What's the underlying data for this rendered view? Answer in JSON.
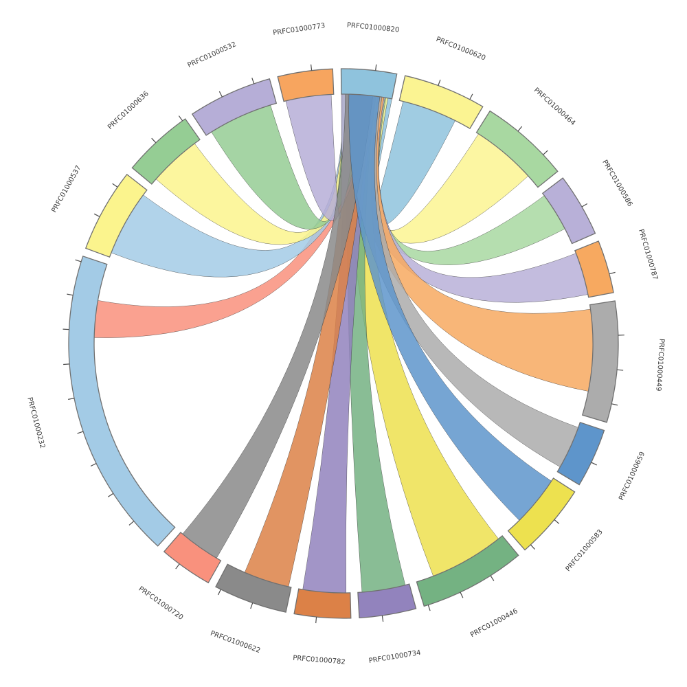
{
  "chart_data": {
    "type": "chord",
    "hub": "PRFC01000820",
    "start_angle_deg": -0.5,
    "tick_interval_deg": 7.2,
    "sectors": [
      {
        "label": "PRFC01000820",
        "size": 11.7,
        "color": "#8FC3DD"
      },
      {
        "label": "PRFC01000620",
        "size": 17.5,
        "color": "#FBF492"
      },
      {
        "label": "PRFC01000464",
        "size": 19.0,
        "color": "#A8D8A1"
      },
      {
        "label": "PRFC01000586",
        "size": 13.4,
        "color": "#B8B0D8"
      },
      {
        "label": "PRFC01000787",
        "size": 11.2,
        "color": "#F7A960"
      },
      {
        "label": "PRFC01000449",
        "size": 25.6,
        "color": "#ACACAC"
      },
      {
        "label": "PRFC01000659",
        "size": 12.5,
        "color": "#5E95CB"
      },
      {
        "label": "PRFC01000583",
        "size": 16.0,
        "color": "#EDE14F"
      },
      {
        "label": "PRFC01000446",
        "size": 22.5,
        "color": "#74B282"
      },
      {
        "label": "PRFC01000734",
        "size": 12.0,
        "color": "#9283BD"
      },
      {
        "label": "PRFC01000782",
        "size": 11.9,
        "color": "#DC8147"
      },
      {
        "label": "PRFC01000622",
        "size": 15.6,
        "color": "#8A8A8A"
      },
      {
        "label": "PRFC01000720",
        "size": 11.3,
        "color": "#F9917D"
      },
      {
        "label": "PRFC01000232",
        "size": 66.0,
        "color": "#A3CBE6"
      },
      {
        "label": "PRFC01000537",
        "size": 17.7,
        "color": "#FBF48D"
      },
      {
        "label": "PRFC01000636",
        "size": 15.1,
        "color": "#95CD94"
      },
      {
        "label": "PRFC01000532",
        "size": 17.8,
        "color": "#B6AED7"
      },
      {
        "label": "PRFC01000773",
        "size": 11.6,
        "color": "#F7A55F"
      }
    ],
    "links": [
      {
        "source": "PRFC01000820",
        "target": "PRFC01000620",
        "source_span": [
          0.6,
          1.0
        ],
        "target_span": [
          0.05,
          0.78
        ],
        "color": "#8FC3DD"
      },
      {
        "source": "PRFC01000820",
        "target": "PRFC01000464",
        "source_span": [
          0.25,
          0.92
        ],
        "target_span": [
          0.03,
          0.82
        ],
        "color": "#FBF492"
      },
      {
        "source": "PRFC01000820",
        "target": "PRFC01000586",
        "source_span": [
          0.22,
          0.88
        ],
        "target_span": [
          0.05,
          0.72
        ],
        "color": "#A8D8A1"
      },
      {
        "source": "PRFC01000820",
        "target": "PRFC01000787",
        "source_span": [
          0.2,
          0.86
        ],
        "target_span": [
          0.06,
          0.94
        ],
        "color": "#B8B0D8"
      },
      {
        "source": "PRFC01000820",
        "target": "PRFC01000449",
        "source_span": [
          0.18,
          0.84
        ],
        "target_span": [
          0.04,
          0.78
        ],
        "color": "#F7A960"
      },
      {
        "source": "PRFC01000820",
        "target": "PRFC01000659",
        "source_span": [
          0.15,
          0.8
        ],
        "target_span": [
          0.1,
          0.9
        ],
        "color": "#ACACAC"
      },
      {
        "source": "PRFC01000820",
        "target": "PRFC01000583",
        "source_span": [
          0.15,
          0.76
        ],
        "target_span": [
          0.05,
          0.78
        ],
        "color": "#5E95CB"
      },
      {
        "source": "PRFC01000820",
        "target": "PRFC01000446",
        "source_span": [
          0.12,
          0.72
        ],
        "target_span": [
          0.05,
          0.82
        ],
        "color": "#EDE14F"
      },
      {
        "source": "PRFC01000820",
        "target": "PRFC01000734",
        "source_span": [
          0.12,
          0.68
        ],
        "target_span": [
          0.08,
          0.92
        ],
        "color": "#74B282"
      },
      {
        "source": "PRFC01000820",
        "target": "PRFC01000782",
        "source_span": [
          0.1,
          0.66
        ],
        "target_span": [
          0.08,
          0.92
        ],
        "color": "#9283BD"
      },
      {
        "source": "PRFC01000820",
        "target": "PRFC01000622",
        "source_span": [
          0.1,
          0.64
        ],
        "target_span": [
          0.04,
          0.72
        ],
        "color": "#DC8147"
      },
      {
        "source": "PRFC01000820",
        "target": "PRFC01000720",
        "source_span": [
          0.08,
          0.62
        ],
        "target_span": [
          0.1,
          0.95
        ],
        "color": "#8A8A8A"
      },
      {
        "source": "PRFC01000820",
        "target": "PRFC01000232",
        "source_span": [
          0.08,
          0.6
        ],
        "target_span": [
          0.74,
          0.87
        ],
        "color": "#F9917D"
      },
      {
        "source": "PRFC01000820",
        "target": "PRFC01000537",
        "source_span": [
          0.05,
          0.55
        ],
        "target_span": [
          0.06,
          0.92
        ],
        "color": "#A3CBE6"
      },
      {
        "source": "PRFC01000820",
        "target": "PRFC01000636",
        "source_span": [
          0.05,
          0.5
        ],
        "target_span": [
          0.1,
          0.9
        ],
        "color": "#FBF48D"
      },
      {
        "source": "PRFC01000820",
        "target": "PRFC01000532",
        "source_span": [
          0.02,
          0.45
        ],
        "target_span": [
          0.08,
          0.92
        ],
        "color": "#95CD94"
      },
      {
        "source": "PRFC01000820",
        "target": "PRFC01000773",
        "source_span": [
          0.0,
          0.3
        ],
        "target_span": [
          0.04,
          0.95
        ],
        "color": "#B6AED7"
      }
    ],
    "draw_order": [
      "PRFC01000620",
      "PRFC01000464",
      "PRFC01000586",
      "PRFC01000787",
      "PRFC01000449",
      "PRFC01000446",
      "PRFC01000734",
      "PRFC01000782",
      "PRFC01000622",
      "PRFC01000232",
      "PRFC01000537",
      "PRFC01000636",
      "PRFC01000532",
      "PRFC01000773",
      "PRFC01000659",
      "PRFC01000720",
      "PRFC01000583"
    ],
    "style": {
      "background": "#ffffff",
      "arc_stroke": "#707070",
      "ribbon_stroke": "#2a2a2a",
      "tick_color": "#4a4a4a",
      "label_color": "#3a3a3a"
    }
  }
}
